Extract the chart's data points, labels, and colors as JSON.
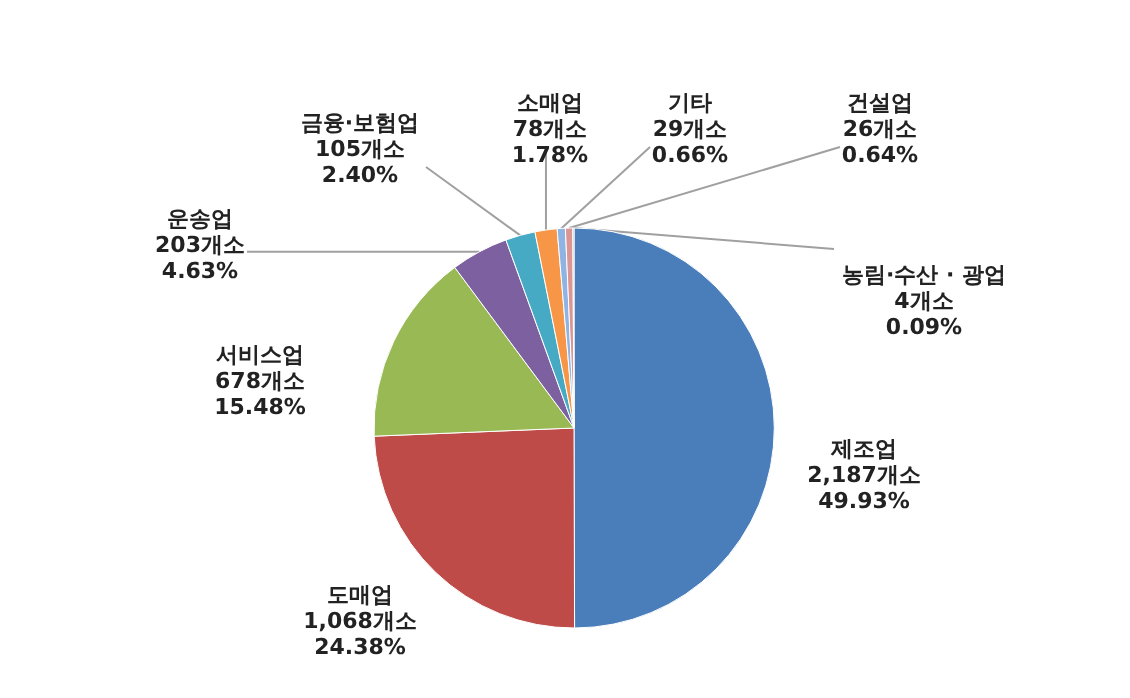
{
  "chart_data": {
    "type": "pie",
    "categories": [
      "제조업",
      "도매업",
      "서비스업",
      "운송업",
      "금융·보험업",
      "소매업",
      "기타",
      "건설업",
      "농림·수산 · 광업"
    ],
    "values": [
      2187,
      1068,
      678,
      203,
      105,
      78,
      29,
      26,
      4
    ],
    "value_labels": [
      "2,187개소\n49.93%",
      "1,068개소\n24.38%",
      "678개소\n15.48%",
      "203개소\n4.63%",
      "105개소\n2.40%",
      "78개소\n1.78%",
      "29개소\n0.66%",
      "26개소\n0.64%",
      "4개소\n0.09%"
    ],
    "colors": [
      "#4a7ebb",
      "#be4b48",
      "#98b954",
      "#7d60a0",
      "#46aac5",
      "#f79646",
      "#8fb4e3",
      "#d99694",
      "#a5a5a5"
    ]
  }
}
